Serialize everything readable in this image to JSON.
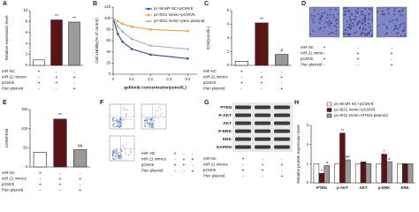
{
  "chart_data": [
    {
      "type": "bar",
      "panel": "A",
      "ylabel": "Relative expression level",
      "categories": [
        "miR-NC+pCMV6",
        "miR-21 mimics+pCMV6",
        "miR-21 mimics+Pten plasmid"
      ],
      "values": [
        1,
        8.3,
        7.9
      ],
      "marks": [
        null,
        "**",
        "**"
      ],
      "colors": [
        "#ffffff",
        "#5a1414",
        "#9a9a9a"
      ],
      "ylim": [
        0,
        10
      ],
      "yticks": [
        0,
        2,
        4,
        6,
        8,
        10
      ],
      "treatments": [
        {
          "label": "miR-NC",
          "signs": [
            "+",
            "-",
            "-"
          ]
        },
        {
          "label": "miR-21 mimics",
          "signs": [
            "-",
            "+",
            "+"
          ]
        },
        {
          "label": "pCMV6",
          "signs": [
            "+",
            "+",
            "-"
          ]
        },
        {
          "label": "Pten plasmid",
          "signs": [
            "-",
            "-",
            "+"
          ]
        }
      ]
    },
    {
      "type": "line",
      "panel": "B",
      "ylabel": "Cell viability(% of control)",
      "xlabel": "gefitinib concentration(umol/L)",
      "x": [
        0,
        0.025,
        0.05,
        0.1,
        0.2,
        0.4
      ],
      "series": [
        {
          "name": "pc-9/miR NC+pCMV6",
          "color": "#2c4a9c",
          "values": [
            100,
            72,
            58,
            45,
            35,
            28
          ]
        },
        {
          "name": "pc-9/21 mimic+pCMV6",
          "color": "#e8a33c",
          "values": [
            100,
            95,
            90,
            85,
            80,
            77
          ]
        },
        {
          "name": "pc-9/21 mimic+pten plasmid",
          "color": "#9fb3c8",
          "values": [
            100,
            86,
            76,
            63,
            51,
            45
          ]
        }
      ],
      "xlim": [
        0,
        0.45
      ],
      "xticks": [
        0,
        0.1,
        0.2,
        0.3,
        0.4
      ],
      "ylim": [
        0,
        120
      ],
      "yticks": [
        0,
        20,
        40,
        60,
        80,
        100,
        120
      ]
    },
    {
      "type": "bar",
      "panel": "C",
      "ylabel": "IC50(umol/L)",
      "categories": [
        "miR-NC+pCMV6",
        "miR-21 mimics+pCMV6",
        "miR-21 mimics+Pten plasmid"
      ],
      "values": [
        0.6,
        6.2,
        1.6
      ],
      "marks": [
        null,
        "**",
        "#"
      ],
      "colors": [
        "#ffffff",
        "#5a1414",
        "#9a9a9a"
      ],
      "ylim": [
        0,
        8
      ],
      "yticks": [
        0,
        2,
        4,
        6,
        8
      ],
      "treatments": [
        {
          "label": "miR-NC",
          "signs": [
            "+",
            "-",
            "-"
          ]
        },
        {
          "label": "miR-21 mimics",
          "signs": [
            "-",
            "+",
            "+"
          ]
        },
        {
          "label": "pCMV6",
          "signs": [
            "+",
            "+",
            "-"
          ]
        },
        {
          "label": "Pten plasmid",
          "signs": [
            "-",
            "-",
            "+"
          ]
        }
      ]
    },
    {
      "type": "micrograph",
      "panel": "D",
      "treatments": [
        {
          "label": "miR-NC",
          "signs": [
            "+",
            "-",
            "-"
          ]
        },
        {
          "label": "miR-21 mimic",
          "signs": [
            "-",
            "+",
            "+"
          ]
        },
        {
          "label": "pCMV6",
          "signs": [
            "+",
            "+",
            "-"
          ]
        },
        {
          "label": "Pten plasmid",
          "signs": [
            "-",
            "-",
            "+"
          ]
        }
      ]
    },
    {
      "type": "bar",
      "panel": "E",
      "ylabel": "Cells/Field",
      "categories": [
        "miR-NC+pCMV6",
        "miR-21 mimics+pCMV6",
        "miR-21 mimics+Pten plasmid"
      ],
      "values": [
        38,
        125,
        45
      ],
      "marks": [
        null,
        "**",
        "##"
      ],
      "colors": [
        "#ffffff",
        "#5a1414",
        "#9a9a9a"
      ],
      "ylim": [
        0,
        150
      ],
      "yticks": [
        0,
        50,
        100,
        150
      ],
      "treatments": [
        {
          "label": "miR-NC",
          "signs": [
            "+",
            "-",
            "-"
          ]
        },
        {
          "label": "miR-21 mimics",
          "signs": [
            "-",
            "+",
            "+"
          ]
        },
        {
          "label": "pCMV6",
          "signs": [
            "+",
            "+",
            "-"
          ]
        },
        {
          "label": "Pten plasmid",
          "signs": [
            "-",
            "-",
            "+"
          ]
        }
      ]
    },
    {
      "type": "flow",
      "panel": "F",
      "treatments": [
        {
          "label": "miR- NC",
          "signs": [
            "+",
            "-",
            "-"
          ]
        },
        {
          "label": "miR-21 mimics",
          "signs": [
            "-",
            "+",
            "+"
          ]
        },
        {
          "label": "pCMV6",
          "signs": [
            "+",
            "+",
            "-"
          ]
        },
        {
          "label": "Pten plasmid",
          "signs": [
            "-",
            "-",
            "+"
          ]
        }
      ]
    },
    {
      "type": "blot",
      "panel": "G",
      "bands": [
        "PTEN",
        "P-AKT",
        "AKT",
        "P-ERK",
        "ERK",
        "GAPDH"
      ],
      "treatments": [
        {
          "label": "miR-NC",
          "signs": [
            "+",
            "-",
            "-"
          ]
        },
        {
          "label": "miR-21 mimics",
          "signs": [
            "-",
            "+",
            "+"
          ]
        },
        {
          "label": "pCMV6",
          "signs": [
            "+",
            "+",
            "-"
          ]
        },
        {
          "label": "Pten plasmid",
          "signs": [
            "-",
            "-",
            "+"
          ]
        }
      ]
    },
    {
      "type": "grouped-bar",
      "panel": "H",
      "ylabel": "Relative protein expression level",
      "categories": [
        "PTEN",
        "p-AKT",
        "AKT",
        "p-ERK",
        "ERK"
      ],
      "series": [
        {
          "name": "pc-9/miR NC+pCMV6",
          "color": "#ffffff",
          "values": [
            1,
            1,
            1,
            1,
            1
          ]
        },
        {
          "name": "pc-9/21 mimic+pCMV6",
          "color": "#5a1414",
          "values": [
            0.5,
            2.6,
            1.1,
            1.5,
            1
          ],
          "marks": [
            "*",
            "**",
            null,
            "*",
            null
          ]
        },
        {
          "name": "pc-9/21 mimic+PTEN plasmid",
          "color": "#9a9a9a",
          "values": [
            0.9,
            1.2,
            1,
            1.1,
            1
          ],
          "marks": [
            "#",
            "##",
            null,
            "#",
            null
          ]
        }
      ],
      "ylim": [
        0,
        3
      ],
      "yticks": [
        0,
        1,
        2,
        3
      ]
    }
  ]
}
